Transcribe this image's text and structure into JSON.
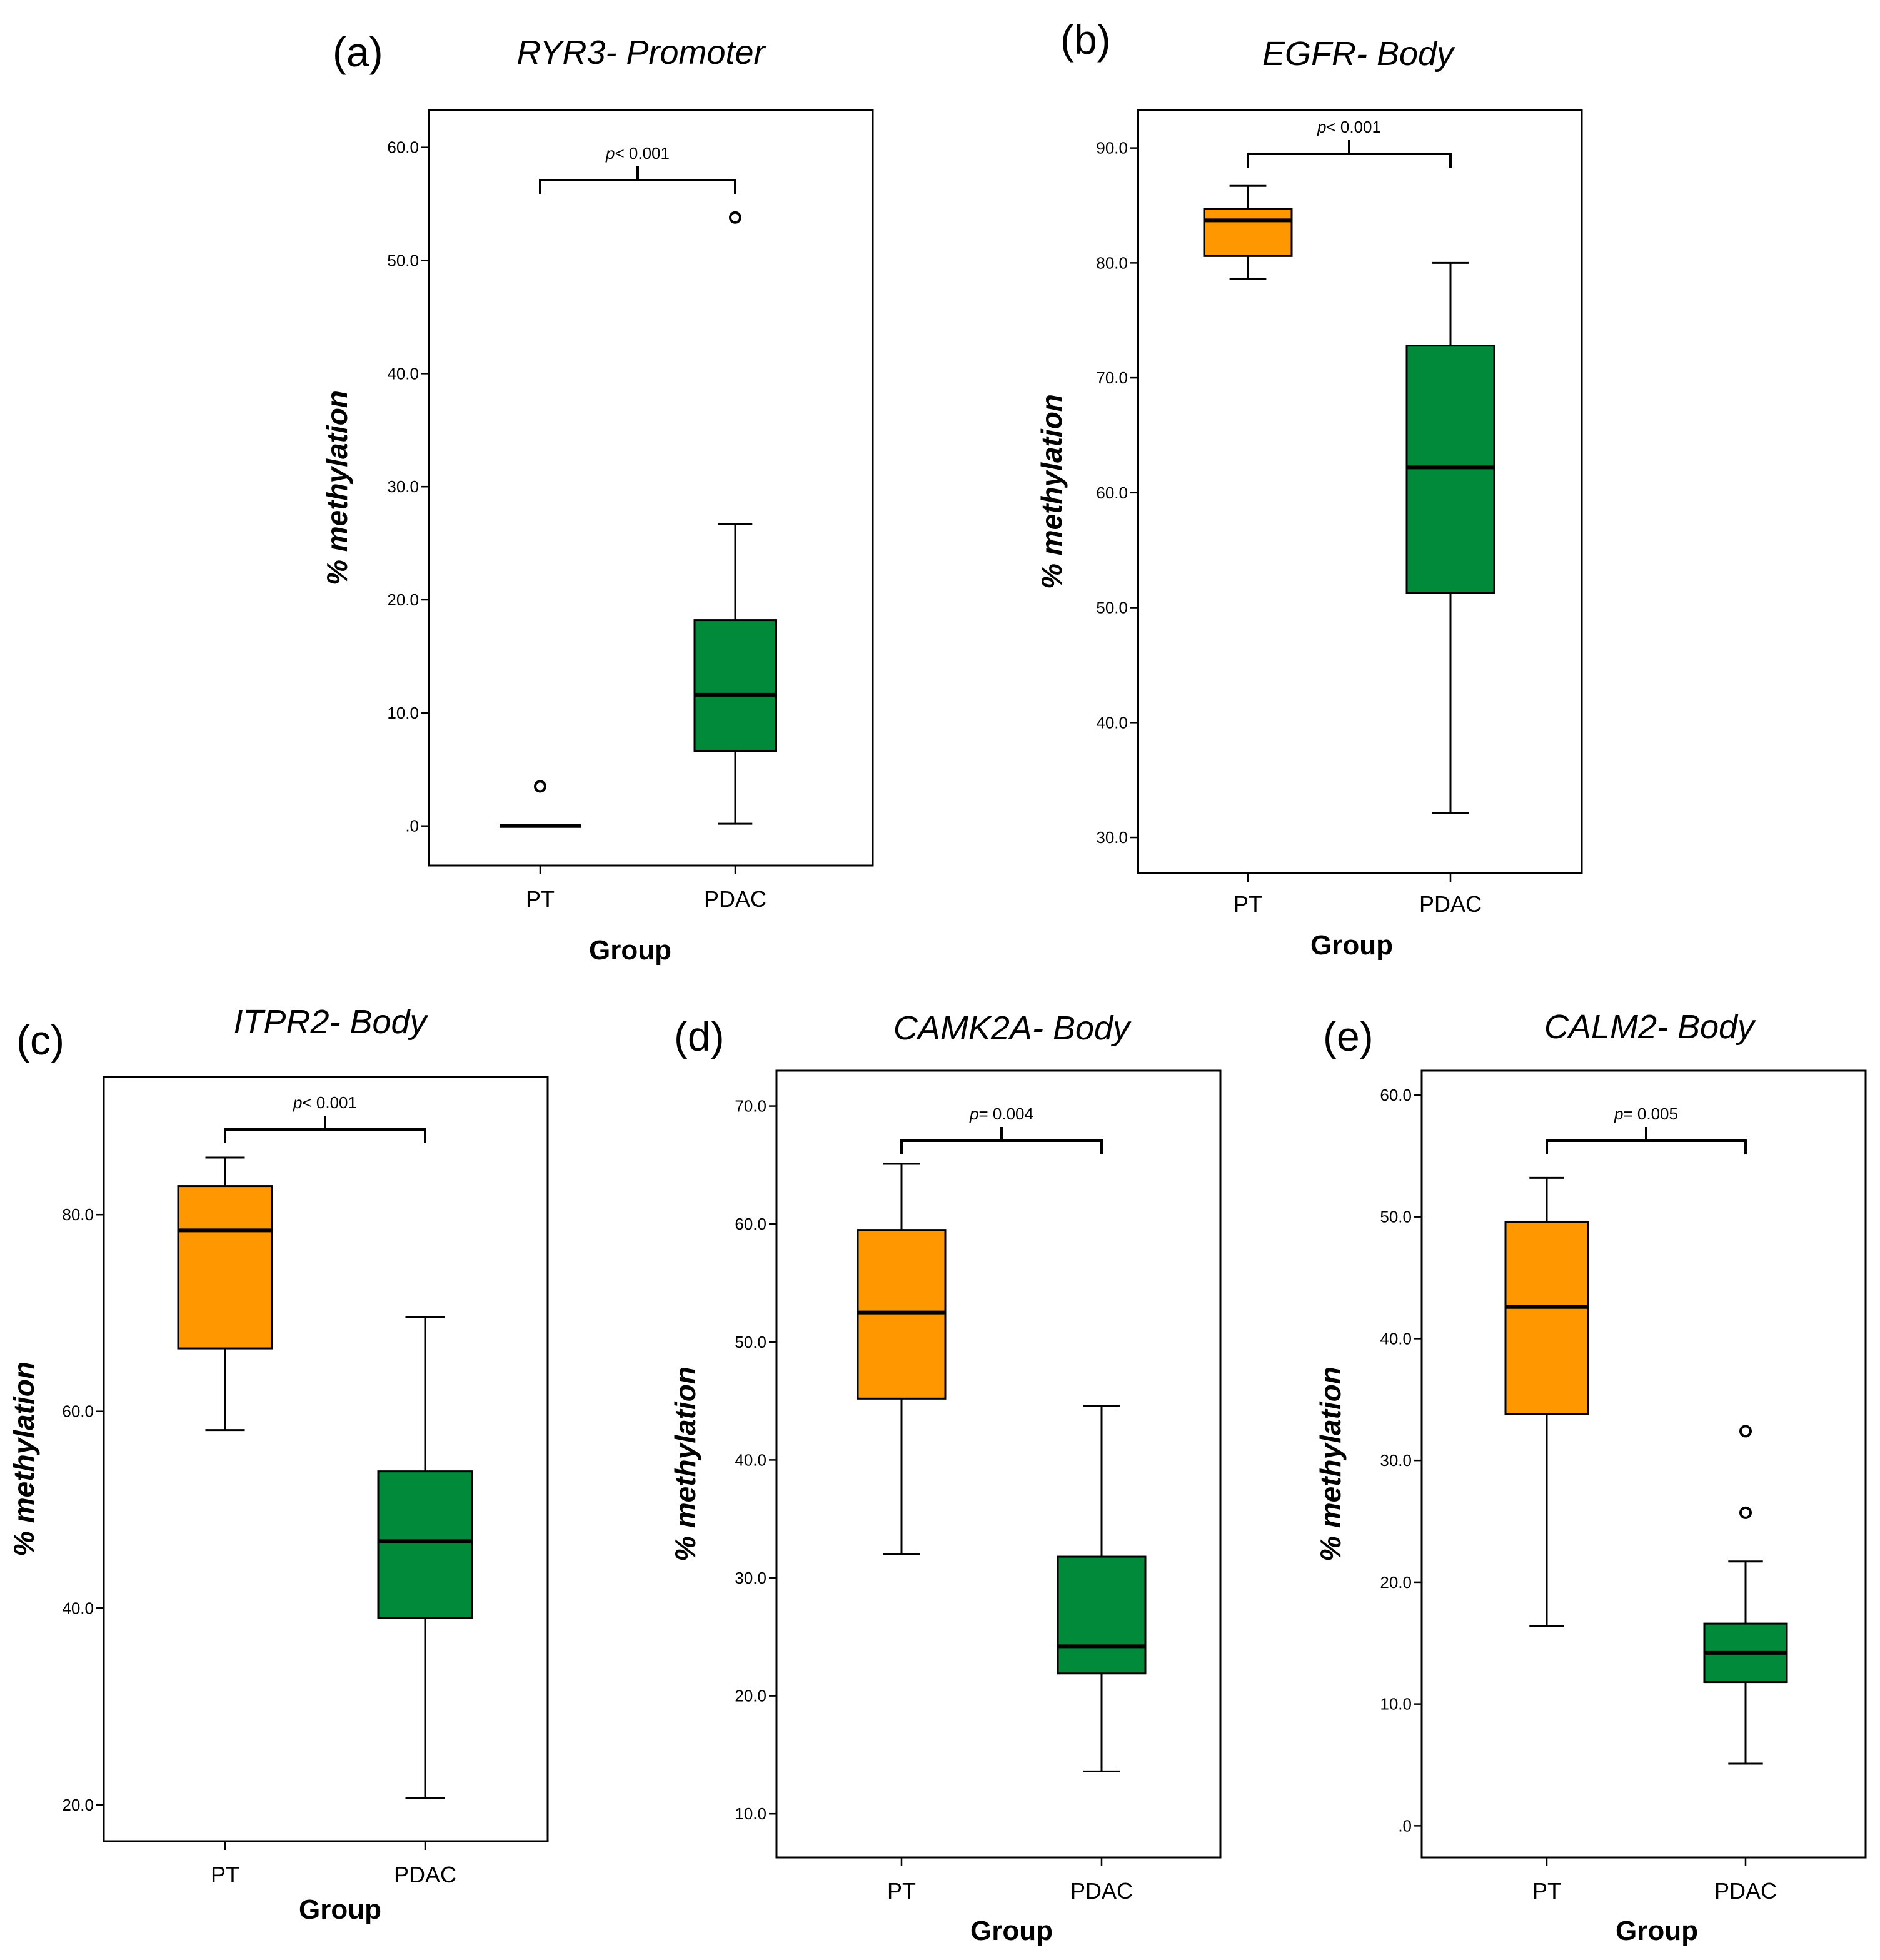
{
  "colors": {
    "PT": "#ff9800",
    "PDAC": "#008a3a"
  },
  "chart_data": [
    {
      "type": "box",
      "panel": "(a)",
      "title": "RYR3- Promoter",
      "xlabel": "Group",
      "ylabel": "% methylation",
      "categories": [
        "PT",
        "PDAC"
      ],
      "ylim": [
        -3.5,
        63.3
      ],
      "yticks": [
        0,
        10,
        20,
        30,
        40,
        50,
        60
      ],
      "ytick_labels": [
        ".0",
        "10.0",
        "20.0",
        "30.0",
        "40.0",
        "50.0",
        "60.0"
      ],
      "p_text": {
        "var": "p",
        "rest": "< 0.001"
      },
      "boxes": [
        {
          "group": "PT",
          "whisker_low": 0,
          "q1": 0,
          "median": 0,
          "q3": 0,
          "whisker_high": 0,
          "outliers": [
            3.5
          ]
        },
        {
          "group": "PDAC",
          "whisker_low": 0.2,
          "q1": 6.6,
          "median": 11.6,
          "q3": 18.2,
          "whisker_high": 26.7,
          "outliers": [
            53.8
          ]
        }
      ]
    },
    {
      "type": "box",
      "panel": "(b)",
      "title": "EGFR- Body",
      "xlabel": "Group",
      "ylabel": "% methylation",
      "categories": [
        "PT",
        "PDAC"
      ],
      "ylim": [
        26.9,
        93.3
      ],
      "yticks": [
        30,
        40,
        50,
        60,
        70,
        80,
        90
      ],
      "ytick_labels": [
        "30.0",
        "40.0",
        "50.0",
        "60.0",
        "70.0",
        "80.0",
        "90.0"
      ],
      "p_text": {
        "var": "p",
        "rest": "< 0.001"
      },
      "boxes": [
        {
          "group": "PT",
          "whisker_low": 78.6,
          "q1": 80.6,
          "median": 83.7,
          "q3": 84.7,
          "whisker_high": 86.7,
          "outliers": []
        },
        {
          "group": "PDAC",
          "whisker_low": 32.1,
          "q1": 51.3,
          "median": 62.2,
          "q3": 72.8,
          "whisker_high": 80.0,
          "outliers": []
        }
      ]
    },
    {
      "type": "box",
      "panel": "(c)",
      "title": "ITPR2- Body",
      "xlabel": "Group",
      "ylabel": "% methylation",
      "categories": [
        "PT",
        "PDAC"
      ],
      "ylim": [
        16.3,
        94.0
      ],
      "yticks": [
        20,
        40,
        60,
        80
      ],
      "ytick_labels": [
        "20.0",
        "40.0",
        "60.0",
        "80.0"
      ],
      "p_text": {
        "var": "p",
        "rest": "< 0.001"
      },
      "boxes": [
        {
          "group": "PT",
          "whisker_low": 58.1,
          "q1": 66.4,
          "median": 78.4,
          "q3": 82.9,
          "whisker_high": 85.8,
          "outliers": []
        },
        {
          "group": "PDAC",
          "whisker_low": 20.7,
          "q1": 39.0,
          "median": 46.8,
          "q3": 53.9,
          "whisker_high": 69.6,
          "outliers": []
        }
      ]
    },
    {
      "type": "box",
      "panel": "(d)",
      "title": "CAMK2A- Body",
      "xlabel": "Group",
      "ylabel": "% methylation",
      "categories": [
        "PT",
        "PDAC"
      ],
      "ylim": [
        6.3,
        73.0
      ],
      "yticks": [
        10,
        20,
        30,
        40,
        50,
        60,
        70
      ],
      "ytick_labels": [
        "10.0",
        "20.0",
        "30.0",
        "40.0",
        "50.0",
        "60.0",
        "70.0"
      ],
      "p_text": {
        "var": "p",
        "rest": "= 0.004"
      },
      "boxes": [
        {
          "group": "PT",
          "whisker_low": 32.0,
          "q1": 45.2,
          "median": 52.5,
          "q3": 59.5,
          "whisker_high": 65.1,
          "outliers": []
        },
        {
          "group": "PDAC",
          "whisker_low": 13.6,
          "q1": 21.9,
          "median": 24.2,
          "q3": 31.8,
          "whisker_high": 44.6,
          "outliers": []
        }
      ]
    },
    {
      "type": "box",
      "panel": "(e)",
      "title": "CALM2- Body",
      "xlabel": "Group",
      "ylabel": "% methylation",
      "categories": [
        "PT",
        "PDAC"
      ],
      "ylim": [
        -2.6,
        62.0
      ],
      "yticks": [
        0,
        10,
        20,
        30,
        40,
        50,
        60
      ],
      "ytick_labels": [
        ".0",
        "10.0",
        "20.0",
        "30.0",
        "40.0",
        "50.0",
        "60.0"
      ],
      "p_text": {
        "var": "p",
        "rest": "= 0.005"
      },
      "boxes": [
        {
          "group": "PT",
          "whisker_low": 16.4,
          "q1": 33.8,
          "median": 42.6,
          "q3": 49.6,
          "whisker_high": 53.2,
          "outliers": []
        },
        {
          "group": "PDAC",
          "whisker_low": 5.1,
          "q1": 11.8,
          "median": 14.2,
          "q3": 16.6,
          "whisker_high": 21.7,
          "outliers": [
            25.7,
            32.4
          ]
        }
      ]
    }
  ]
}
